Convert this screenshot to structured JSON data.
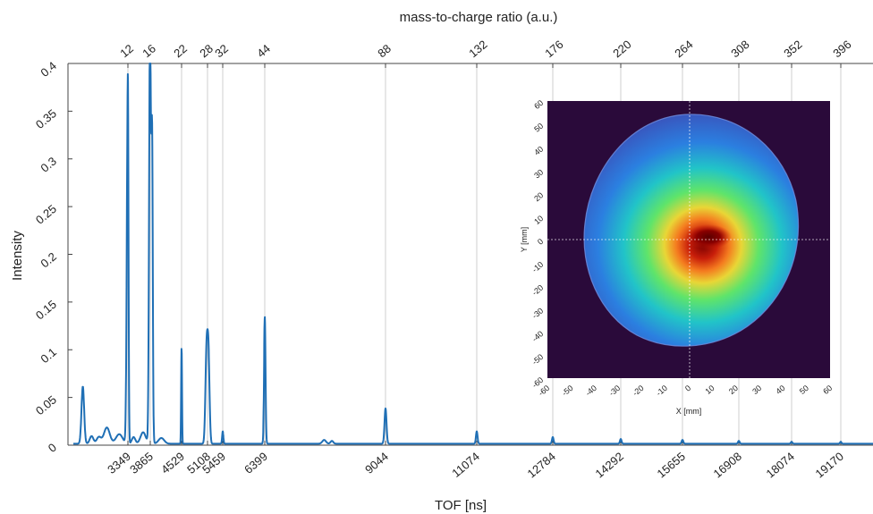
{
  "chart_data": [
    {
      "type": "line",
      "xlabel": "TOF [ns]",
      "ylabel": "Intensity",
      "top_xlabel": "mass-to-charge ratio (a.u.)",
      "xlim": [
        2600,
        20000
      ],
      "ylim": [
        0,
        0.4
      ],
      "grid": "vertical lines at top-axis masses",
      "x_ticks": [
        3349,
        3865,
        4529,
        5108,
        5459,
        6399,
        9044,
        11074,
        12784,
        14292,
        15655,
        16908,
        18074,
        19170
      ],
      "y_ticks": [
        0,
        0.05,
        0.1,
        0.15,
        0.2,
        0.25,
        0.3,
        0.35,
        0.4
      ],
      "top_ticks": [
        "12",
        "16",
        "22",
        "28",
        "32",
        "44",
        "88",
        "132",
        "176",
        "220",
        "264",
        "308",
        "352",
        "396"
      ],
      "series": [
        {
          "color": "#1f6fb5",
          "peaks": [
            {
              "x": 2730,
              "y": 0.06,
              "w": 18
            },
            {
              "x": 2850,
              "y": 0.008,
              "w": 25
            },
            {
              "x": 2950,
              "y": 0.007,
              "w": 30
            },
            {
              "x": 3060,
              "y": 0.017,
              "w": 40
            },
            {
              "x": 3230,
              "y": 0.01,
              "w": 45
            },
            {
              "x": 3349,
              "y": 0.388,
              "w": 14
            },
            {
              "x": 3480,
              "y": 0.007,
              "w": 40
            },
            {
              "x": 3700,
              "y": 0.012,
              "w": 60
            },
            {
              "x": 3855,
              "y": 0.27,
              "w": 18
            },
            {
              "x": 3870,
              "y": 0.2,
              "w": 26
            },
            {
              "x": 3905,
              "y": 0.245,
              "w": 14
            },
            {
              "x": 4100,
              "y": 0.006,
              "w": 60
            },
            {
              "x": 4529,
              "y": 0.1,
              "w": 9
            },
            {
              "x": 5085,
              "y": 0.09,
              "w": 25
            },
            {
              "x": 5130,
              "y": 0.09,
              "w": 25
            },
            {
              "x": 5459,
              "y": 0.013,
              "w": 14
            },
            {
              "x": 6399,
              "y": 0.133,
              "w": 16
            },
            {
              "x": 7700,
              "y": 0.004,
              "w": 40
            },
            {
              "x": 7870,
              "y": 0.003,
              "w": 30
            },
            {
              "x": 9044,
              "y": 0.037,
              "w": 22
            },
            {
              "x": 11074,
              "y": 0.013,
              "w": 18
            },
            {
              "x": 12784,
              "y": 0.007,
              "w": 18
            },
            {
              "x": 14292,
              "y": 0.005,
              "w": 18
            },
            {
              "x": 15655,
              "y": 0.004,
              "w": 18
            },
            {
              "x": 16908,
              "y": 0.003,
              "w": 18
            },
            {
              "x": 18074,
              "y": 0.002,
              "w": 18
            },
            {
              "x": 19170,
              "y": 0.002,
              "w": 18
            }
          ]
        }
      ]
    },
    {
      "type": "heatmap",
      "xlabel": "X [mm]",
      "ylabel": "Y [mm]",
      "xlim": [
        -60,
        60
      ],
      "ylim": [
        -60,
        60
      ],
      "x_ticks": [
        "-60",
        "-50",
        "-40",
        "-30",
        "-20",
        "-10",
        "0",
        "10",
        "20",
        "30",
        "40",
        "50",
        "60"
      ],
      "y_ticks": [
        "60",
        "50",
        "40",
        "30",
        "20",
        "10",
        "0",
        "-10",
        "-20",
        "-30",
        "-40",
        "-50",
        "-60"
      ],
      "colormap": "turbo-like (dark purple background, blue halo, green/yellow ring, dark red center)",
      "background": "#2a0a3a",
      "detector_center_mm": [
        0,
        0
      ],
      "hotspot_center_mm": [
        10,
        5
      ],
      "detector_radius_mm": 45
    }
  ]
}
